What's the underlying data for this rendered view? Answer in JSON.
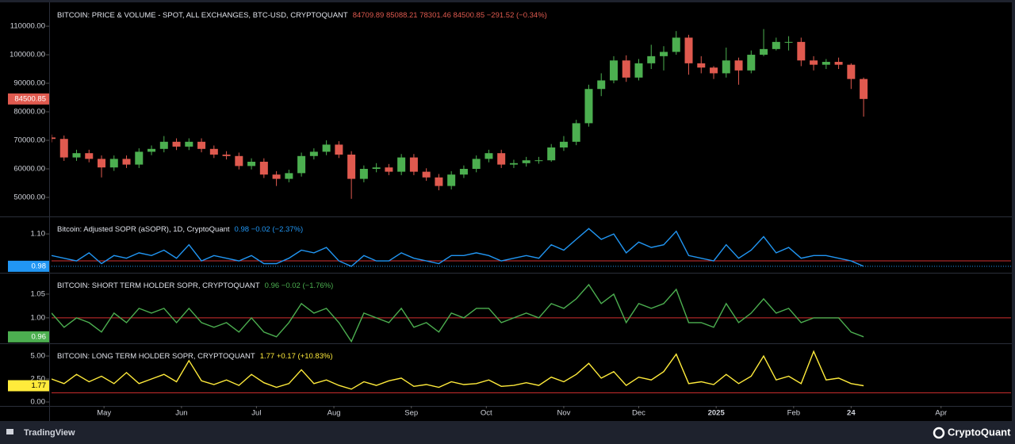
{
  "chart_data": [
    {
      "type": "candlestick",
      "title": "BITCOIN: PRICE & VOLUME - SPOT, ALL EXCHANGES, BTC-USD, CRYPTOQUANT",
      "legend_values": "84709.89  85088.21  78301.46  84500.85  −291.52 (−0.34%)",
      "last_label": "84500.85",
      "up_color": "#4caf50",
      "down_color": "#e05a4f",
      "badge_color": "#e05a4f",
      "x": [
        0,
        5,
        10,
        15,
        20,
        25,
        30,
        35,
        40,
        45,
        50,
        55,
        60,
        65,
        70,
        75,
        80,
        85,
        90,
        95,
        100,
        105,
        110,
        115,
        120,
        125,
        130,
        135,
        140,
        145,
        150,
        155,
        160,
        165,
        170,
        175,
        180,
        185,
        190,
        195,
        200,
        205,
        210,
        215,
        220,
        225,
        230,
        235,
        240,
        245,
        250,
        255,
        260,
        265,
        270,
        275,
        280,
        285,
        290,
        295,
        300,
        305,
        310,
        315,
        320,
        325
      ],
      "open": [
        71000,
        70500,
        64000,
        65500,
        63500,
        60500,
        63500,
        61500,
        66000,
        67000,
        69500,
        67800,
        69500,
        67000,
        65000,
        64500,
        61000,
        62500,
        58000,
        56500,
        58500,
        64500,
        66000,
        68500,
        65000,
        56500,
        60000,
        60500,
        59000,
        64000,
        59000,
        57000,
        54000,
        58000,
        60000,
        63500,
        65500,
        61500,
        62000,
        63000,
        63000,
        67500,
        69500,
        76000,
        88000,
        91000,
        98000,
        92000,
        97000,
        99500,
        101000,
        106000,
        97000,
        95500,
        93500,
        98000,
        94500,
        100000,
        102000,
        104500,
        104500,
        98000,
        96500,
        97500,
        96500,
        91500
      ],
      "high": [
        72000,
        71700,
        66700,
        66700,
        64700,
        64700,
        64700,
        67200,
        68200,
        71500,
        70700,
        70700,
        70700,
        68200,
        66200,
        65700,
        63700,
        63700,
        59200,
        59700,
        65700,
        67200,
        70000,
        69700,
        66200,
        61200,
        62000,
        61700,
        65200,
        65200,
        60200,
        58200,
        59200,
        61200,
        64700,
        66700,
        66700,
        63200,
        64200,
        64200,
        68700,
        71500,
        77200,
        89500,
        93500,
        99500,
        99800,
        98500,
        103500,
        103000,
        108300,
        107000,
        99500,
        96000,
        102500,
        99000,
        101500,
        109000,
        106000,
        106500,
        106000,
        99500,
        98500,
        99000,
        97000,
        92000
      ],
      "low": [
        69300,
        62800,
        62800,
        62300,
        57000,
        59300,
        60300,
        60300,
        64800,
        65800,
        66600,
        66600,
        65800,
        63800,
        63300,
        59800,
        59800,
        56800,
        54000,
        55300,
        57300,
        63300,
        64800,
        63800,
        49500,
        55300,
        58800,
        57800,
        57800,
        57800,
        55800,
        52500,
        52800,
        56800,
        58800,
        62300,
        60300,
        60300,
        60800,
        61800,
        62500,
        66300,
        68300,
        74800,
        85500,
        90000,
        90500,
        91000,
        95000,
        94500,
        100000,
        93000,
        93500,
        91500,
        92000,
        89500,
        93500,
        99500,
        101500,
        101500,
        96000,
        94500,
        95000,
        95000,
        88000,
        78301.46
      ],
      "close": [
        70500,
        64000,
        65500,
        63500,
        60500,
        63500,
        61500,
        66000,
        67000,
        69500,
        67800,
        69500,
        67000,
        65000,
        64500,
        61000,
        62500,
        58000,
        56500,
        58500,
        64500,
        66000,
        68500,
        65000,
        56500,
        60000,
        60500,
        59000,
        64000,
        59000,
        57000,
        54000,
        58000,
        60000,
        63500,
        65500,
        61500,
        62000,
        63000,
        63000,
        67500,
        69500,
        76000,
        88000,
        91000,
        98000,
        92000,
        97000,
        99500,
        101000,
        106000,
        97000,
        95500,
        93500,
        98000,
        94500,
        100000,
        102000,
        104500,
        104500,
        98000,
        96500,
        97500,
        96500,
        91500,
        84500.85
      ],
      "ylim": [
        43600,
        117800
      ],
      "yticks": [
        {
          "value": 50000,
          "label": "50000.00"
        },
        {
          "value": 60000,
          "label": "60000.00"
        },
        {
          "value": 70000,
          "label": "70000.00"
        },
        {
          "value": 80000,
          "label": "80000.00"
        },
        {
          "value": 90000,
          "label": "90000.00"
        },
        {
          "value": 100000,
          "label": "100000.00"
        },
        {
          "value": 110000,
          "label": "110000.00"
        }
      ]
    },
    {
      "type": "line",
      "title": "Bitcoin: Adjusted SOPR (aSOPR), 1D, CryptoQuant",
      "legend_values": "0.98  −0.02 (−2.37%)",
      "last_label": "0.98",
      "color": "#2196f3",
      "reference_line": 1,
      "reference_color": "#d32f2f",
      "values": [
        1.02,
        1.01,
        1.0,
        1.03,
        0.99,
        1.02,
        1.01,
        1.03,
        1.02,
        1.04,
        1.01,
        1.06,
        1.0,
        1.02,
        1.01,
        1.0,
        1.02,
        0.99,
        0.99,
        1.01,
        1.04,
        1.03,
        1.05,
        1.0,
        0.98,
        1.02,
        1.0,
        1.0,
        1.03,
        1.01,
        1.0,
        0.99,
        1.02,
        1.02,
        1.03,
        1.02,
        1.0,
        1.01,
        1.02,
        1.01,
        1.06,
        1.04,
        1.08,
        1.12,
        1.08,
        1.1,
        1.03,
        1.07,
        1.05,
        1.06,
        1.11,
        1.02,
        1.01,
        1.0,
        1.06,
        1.01,
        1.04,
        1.09,
        1.03,
        1.05,
        1.01,
        1.02,
        1.02,
        1.01,
        1.0,
        0.98
      ],
      "ylim": [
        0.959,
        1.159
      ],
      "yticks": [
        {
          "value": 1.1,
          "label": "1.10"
        }
      ]
    },
    {
      "type": "line",
      "title": "BITCOIN: SHORT TERM HOLDER SOPR, CRYPTOQUANT",
      "legend_values": "0.96  −0.02 (−1.76%)",
      "last_label": "0.96",
      "color": "#4caf50",
      "reference_line": 1,
      "reference_color": "#d32f2f",
      "values": [
        1.01,
        0.98,
        1.0,
        0.99,
        0.97,
        1.01,
        0.99,
        1.02,
        1.01,
        1.02,
        0.99,
        1.02,
        0.99,
        0.98,
        0.99,
        0.97,
        1.0,
        0.97,
        0.96,
        0.99,
        1.03,
        1.01,
        1.02,
        0.99,
        0.95,
        1.01,
        1.0,
        0.99,
        1.02,
        0.98,
        0.99,
        0.97,
        1.01,
        1.0,
        1.02,
        1.02,
        0.99,
        1.0,
        1.01,
        1.0,
        1.03,
        1.02,
        1.04,
        1.07,
        1.03,
        1.05,
        0.99,
        1.03,
        1.02,
        1.03,
        1.06,
        0.99,
        0.99,
        0.98,
        1.03,
        0.99,
        1.01,
        1.04,
        1.01,
        1.02,
        0.99,
        1.0,
        1.0,
        1.0,
        0.97,
        0.96
      ],
      "ylim": [
        0.948,
        1.0917
      ],
      "yticks": [
        {
          "value": 1,
          "label": "1.00"
        },
        {
          "value": 1.05,
          "label": "1.05"
        }
      ]
    },
    {
      "type": "line",
      "title": "BITCOIN: LONG TERM HOLDER SOPR, CRYPTOQUANT",
      "legend_values": "1.77  +0.17 (+10.83%)",
      "last_label": "1.77",
      "color": "#ffeb3b",
      "reference_line": 1,
      "reference_color": "#d32f2f",
      "values": [
        2.5,
        2.0,
        3.0,
        2.2,
        2.8,
        2.0,
        3.2,
        2.0,
        2.5,
        3.0,
        2.2,
        4.5,
        2.3,
        1.9,
        2.4,
        1.8,
        3.0,
        2.1,
        1.6,
        2.0,
        3.5,
        2.0,
        2.4,
        1.8,
        1.4,
        2.2,
        1.8,
        2.3,
        2.6,
        1.7,
        1.9,
        1.6,
        2.2,
        1.9,
        2.0,
        2.4,
        1.7,
        1.8,
        2.1,
        1.8,
        2.7,
        2.2,
        3.0,
        4.2,
        2.6,
        3.3,
        1.8,
        2.7,
        2.4,
        3.3,
        5.2,
        2.0,
        2.2,
        1.9,
        3.0,
        2.0,
        2.8,
        5.0,
        2.4,
        2.8,
        2.0,
        5.5,
        2.4,
        2.6,
        2.0,
        1.77
      ],
      "ylim": [
        -0.43,
        6.21
      ],
      "yticks": [
        {
          "value": 0,
          "label": "0.00"
        },
        {
          "value": 2.5,
          "label": "2.50"
        },
        {
          "value": 5,
          "label": "5.00"
        }
      ],
      "xlim": [
        0,
        384
      ],
      "xticks": [
        {
          "value": 21,
          "label": "May"
        },
        {
          "value": 52,
          "label": "Jun"
        },
        {
          "value": 82,
          "label": "Jul"
        },
        {
          "value": 113,
          "label": "Aug"
        },
        {
          "value": 144,
          "label": "Sep"
        },
        {
          "value": 174,
          "label": "Oct"
        },
        {
          "value": 205,
          "label": "Nov"
        },
        {
          "value": 235,
          "label": "Dec"
        },
        {
          "value": 266,
          "label": "2025"
        },
        {
          "value": 297,
          "label": "Feb"
        },
        {
          "value": 320,
          "label": "24"
        },
        {
          "value": 356,
          "label": "Apr"
        }
      ]
    }
  ],
  "footer": {
    "left": "TradingView",
    "right": "CryptoQuant"
  }
}
